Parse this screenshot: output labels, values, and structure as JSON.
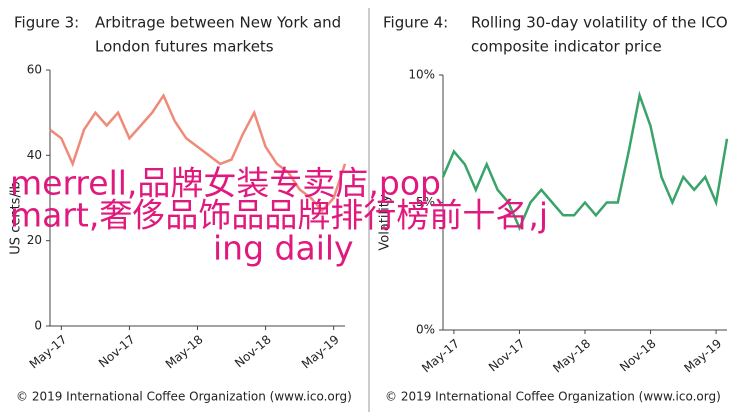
{
  "chart_data": [
    {
      "type": "line",
      "figure_label": "Figure 3:",
      "title": "Arbitrage between New York and London futures markets",
      "title_lines": [
        "Arbitrage between New York and",
        "London futures markets"
      ],
      "ylabel": "US cents/lb",
      "x": [
        "Apr-17",
        "May-17",
        "Jun-17",
        "Jul-17",
        "Aug-17",
        "Sep-17",
        "Oct-17",
        "Nov-17",
        "Dec-17",
        "Jan-18",
        "Feb-18",
        "Mar-18",
        "Apr-18",
        "May-18",
        "Jun-18",
        "Jul-18",
        "Aug-18",
        "Sep-18",
        "Oct-18",
        "Nov-18",
        "Dec-18",
        "Jan-19",
        "Feb-19",
        "Mar-19",
        "Apr-19",
        "May-19",
        "Jun-19"
      ],
      "series": [
        {
          "color": "#f08a78",
          "values": [
            46,
            44,
            38,
            46,
            50,
            47,
            50,
            44,
            47,
            50,
            54,
            48,
            44,
            42,
            40,
            38,
            39,
            45,
            50,
            42,
            38,
            36,
            32,
            30,
            27,
            30,
            38
          ]
        }
      ],
      "ylim": [
        0,
        60
      ],
      "yticks": [
        0,
        20,
        40,
        60
      ],
      "xticks": [
        "May-17",
        "Nov-17",
        "May-18",
        "Nov-18",
        "May-19"
      ],
      "source": "© 2019 International Coffee Organization (www.ico.org)"
    },
    {
      "type": "line",
      "figure_label": "Figure 4:",
      "title": "Rolling 30-day volatility of the ICO composite indicator price",
      "title_lines": [
        "Rolling 30-day volatility of the ICO",
        "composite indicator price"
      ],
      "ylabel": "Volatility",
      "x": [
        "Apr-17",
        "May-17",
        "Jun-17",
        "Jul-17",
        "Aug-17",
        "Sep-17",
        "Oct-17",
        "Nov-17",
        "Dec-17",
        "Jan-18",
        "Feb-18",
        "Mar-18",
        "Apr-18",
        "May-18",
        "Jun-18",
        "Jul-18",
        "Aug-18",
        "Sep-18",
        "Oct-18",
        "Nov-18",
        "Dec-18",
        "Jan-19",
        "Feb-19",
        "Mar-19",
        "Apr-19",
        "May-19",
        "Jun-19"
      ],
      "series": [
        {
          "color": "#3aa36a",
          "values": [
            6,
            7,
            6.5,
            5.5,
            6.5,
            5.5,
            5,
            4,
            5,
            5.5,
            5,
            4.5,
            4.5,
            5,
            4.5,
            5,
            5,
            7,
            9.2,
            8,
            6,
            5,
            6,
            5.5,
            6,
            5,
            7.5
          ]
        }
      ],
      "ylim": [
        0,
        10
      ],
      "yticks": [
        {
          "value": 0,
          "label": "0%"
        },
        {
          "value": 5,
          "label": "5%"
        },
        {
          "value": 10,
          "label": "10%"
        }
      ],
      "xticks": [
        "May-17",
        "Nov-17",
        "May-18",
        "Nov-18",
        "May-19"
      ],
      "source": "© 2019 International Coffee Organization (www.ico.org)"
    }
  ],
  "overlay": {
    "lines": [
      "merrell,品牌女装专卖店,pop",
      "mart,奢侈品饰品品牌排行榜前十名,j",
      "ing daily"
    ]
  }
}
